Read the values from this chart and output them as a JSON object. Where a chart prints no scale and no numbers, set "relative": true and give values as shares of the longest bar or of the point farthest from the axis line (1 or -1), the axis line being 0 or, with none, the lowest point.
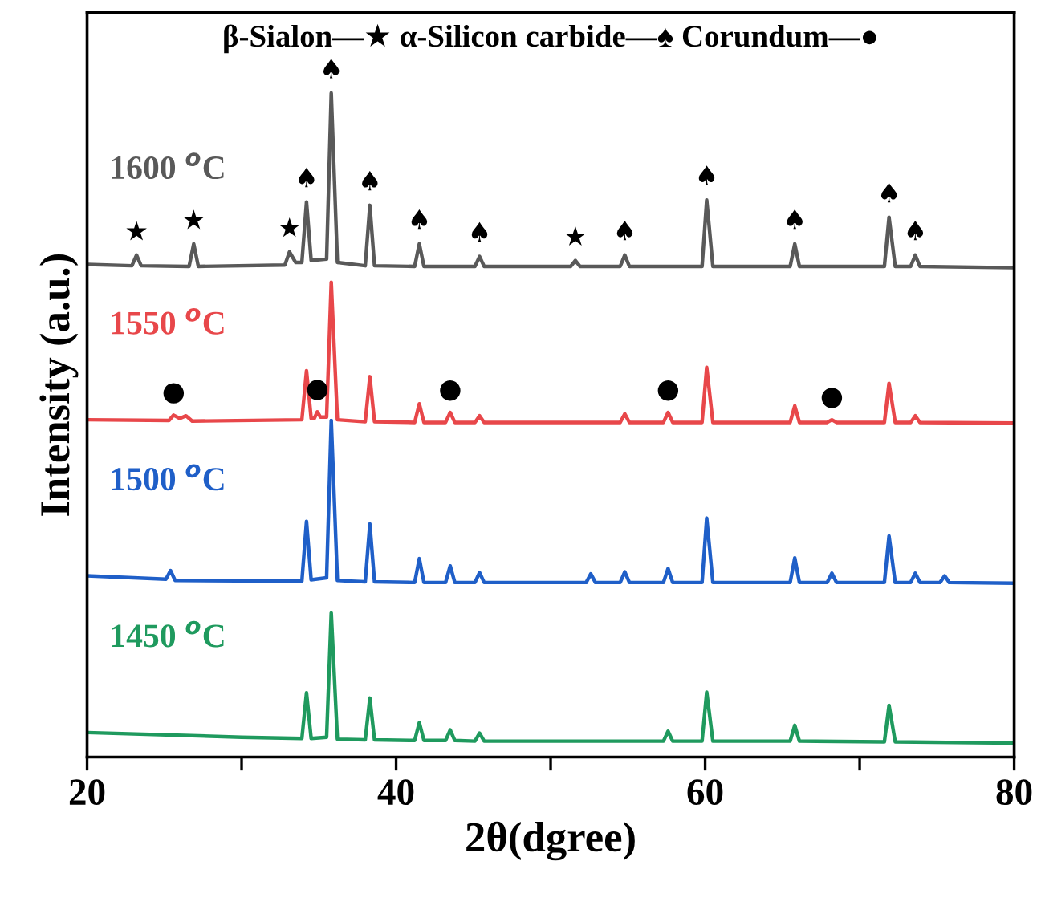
{
  "chart_data": {
    "type": "line",
    "relative": true,
    "xlabel": "2θ(dgree)",
    "ylabel": "Intensity (a.u.)",
    "xlim": [
      20,
      80
    ],
    "xticks": [
      20,
      {
        "value": 30,
        "label": null
      },
      40,
      {
        "value": 50,
        "label": null
      },
      60,
      {
        "value": 70,
        "label": null
      },
      80
    ],
    "tick_labels": "x",
    "grid": false,
    "legend": false,
    "marker": "none",
    "line_style": "solid",
    "series": [
      {
        "name": "1600 $^{o}$C",
        "color": "#595959",
        "x": [
          20,
          22.9,
          23.2,
          23.5,
          26.6,
          26.9,
          27.2,
          32.8,
          33.1,
          33.5,
          33.9,
          34.2,
          34.5,
          35.5,
          35.8,
          36.2,
          38.0,
          38.3,
          38.6,
          41.2,
          41.5,
          41.8,
          45.1,
          45.4,
          45.7,
          51.3,
          51.6,
          51.9,
          54.5,
          54.8,
          55.1,
          59.8,
          60.1,
          60.5,
          65.5,
          65.8,
          66.1,
          71.6,
          71.9,
          72.3,
          73.3,
          73.6,
          73.9,
          80
        ],
        "values": [
          0.742,
          0.74,
          0.756,
          0.74,
          0.739,
          0.773,
          0.739,
          0.741,
          0.761,
          0.745,
          0.745,
          0.836,
          0.748,
          0.75,
          1.0,
          0.745,
          0.74,
          0.831,
          0.74,
          0.739,
          0.773,
          0.739,
          0.739,
          0.754,
          0.739,
          0.739,
          0.748,
          0.739,
          0.739,
          0.756,
          0.739,
          0.739,
          0.839,
          0.739,
          0.739,
          0.773,
          0.739,
          0.739,
          0.813,
          0.739,
          0.739,
          0.756,
          0.739,
          0.737
        ]
      },
      {
        "name": "1550 $^{o}$C",
        "color": "#e8474a",
        "x": [
          20,
          25.3,
          25.6,
          26.0,
          26.4,
          26.8,
          33.9,
          34.2,
          34.5,
          34.7,
          34.9,
          35.1,
          35.5,
          35.8,
          36.2,
          38.0,
          38.3,
          38.6,
          41.2,
          41.5,
          41.8,
          43.2,
          43.5,
          43.8,
          45.1,
          45.4,
          45.7,
          54.5,
          54.8,
          55.1,
          57.3,
          57.6,
          57.9,
          59.8,
          60.1,
          60.5,
          65.5,
          65.8,
          66.1,
          67.9,
          68.2,
          68.5,
          71.6,
          71.9,
          72.3,
          73.3,
          73.6,
          73.9,
          80
        ],
        "values": [
          0.508,
          0.507,
          0.515,
          0.51,
          0.514,
          0.506,
          0.508,
          0.582,
          0.51,
          0.51,
          0.52,
          0.512,
          0.512,
          0.715,
          0.508,
          0.505,
          0.573,
          0.505,
          0.504,
          0.532,
          0.504,
          0.504,
          0.519,
          0.504,
          0.504,
          0.514,
          0.504,
          0.504,
          0.517,
          0.504,
          0.504,
          0.519,
          0.504,
          0.504,
          0.587,
          0.504,
          0.504,
          0.529,
          0.504,
          0.504,
          0.508,
          0.504,
          0.504,
          0.563,
          0.504,
          0.504,
          0.514,
          0.504,
          0.503
        ]
      },
      {
        "name": "1500 $^{o}$C",
        "color": "#1f5fc8",
        "x": [
          20,
          25.1,
          25.4,
          25.7,
          33.9,
          34.2,
          34.5,
          35.5,
          35.8,
          36.2,
          38.0,
          38.3,
          38.6,
          41.2,
          41.5,
          41.8,
          43.2,
          43.5,
          43.8,
          45.1,
          45.4,
          45.7,
          52.3,
          52.6,
          52.9,
          54.5,
          54.8,
          55.1,
          57.3,
          57.6,
          57.9,
          59.8,
          60.1,
          60.5,
          65.5,
          65.8,
          66.1,
          67.9,
          68.2,
          68.5,
          71.6,
          71.9,
          72.3,
          73.3,
          73.6,
          73.9,
          75.2,
          75.5,
          75.8,
          80
        ],
        "values": [
          0.273,
          0.268,
          0.281,
          0.266,
          0.265,
          0.355,
          0.267,
          0.27,
          0.507,
          0.266,
          0.264,
          0.351,
          0.264,
          0.263,
          0.299,
          0.263,
          0.263,
          0.288,
          0.263,
          0.263,
          0.278,
          0.263,
          0.263,
          0.276,
          0.263,
          0.263,
          0.279,
          0.263,
          0.263,
          0.284,
          0.263,
          0.263,
          0.36,
          0.263,
          0.263,
          0.3,
          0.263,
          0.263,
          0.277,
          0.263,
          0.263,
          0.333,
          0.263,
          0.263,
          0.277,
          0.263,
          0.263,
          0.273,
          0.263,
          0.262
        ]
      },
      {
        "name": "1450 $^{o}$C",
        "color": "#1f9a5e",
        "x": [
          20,
          30,
          33.9,
          34.2,
          34.5,
          35.5,
          35.8,
          36.2,
          38.0,
          38.3,
          38.6,
          41.2,
          41.5,
          41.8,
          43.2,
          43.5,
          43.8,
          45.1,
          45.4,
          45.7,
          57.3,
          57.6,
          57.9,
          59.8,
          60.1,
          60.5,
          65.5,
          65.8,
          66.1,
          71.6,
          71.9,
          72.3,
          80
        ],
        "values": [
          0.037,
          0.03,
          0.028,
          0.097,
          0.028,
          0.03,
          0.217,
          0.027,
          0.026,
          0.089,
          0.026,
          0.025,
          0.052,
          0.025,
          0.025,
          0.041,
          0.025,
          0.024,
          0.036,
          0.024,
          0.024,
          0.039,
          0.024,
          0.024,
          0.098,
          0.024,
          0.024,
          0.048,
          0.024,
          0.023,
          0.078,
          0.023,
          0.021
        ]
      }
    ],
    "annotations": [
      "β-Sialon—★ α-Silicon carbide—♠ Corundum—●",
      {
        "text": "★",
        "x": 23.2,
        "y": 0.756
      },
      {
        "text": "★",
        "x": 26.9,
        "y": 0.773
      },
      {
        "text": "★",
        "x": 33.1,
        "y": 0.761
      },
      {
        "text": "♠",
        "x": 34.2,
        "y": 0.836
      },
      {
        "text": "♠",
        "x": 35.8,
        "y": 1.0
      },
      {
        "text": "♠",
        "x": 38.3,
        "y": 0.831
      },
      {
        "text": "♠",
        "x": 41.5,
        "y": 0.773
      },
      {
        "text": "♠",
        "x": 45.4,
        "y": 0.754
      },
      {
        "text": "★",
        "x": 51.6,
        "y": 0.748
      },
      {
        "text": "♠",
        "x": 54.8,
        "y": 0.756
      },
      {
        "text": "♠",
        "x": 60.1,
        "y": 0.839
      },
      {
        "text": "♠",
        "x": 65.8,
        "y": 0.773
      },
      {
        "text": "♠",
        "x": 71.9,
        "y": 0.813
      },
      {
        "text": "♠",
        "x": 73.6,
        "y": 0.756
      },
      {
        "text": "●",
        "x": 25.6,
        "y": 0.515
      },
      {
        "text": "●",
        "x": 34.9,
        "y": 0.52
      },
      {
        "text": "●",
        "x": 43.5,
        "y": 0.519
      },
      {
        "text": "●",
        "x": 57.6,
        "y": 0.519
      },
      {
        "text": "●",
        "x": 68.2,
        "y": 0.508
      }
    ]
  }
}
